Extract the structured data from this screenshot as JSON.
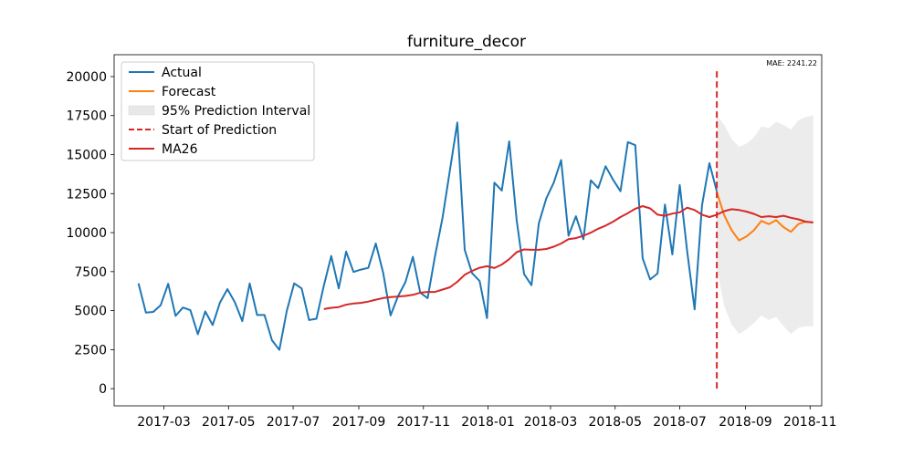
{
  "chart_data": {
    "type": "line",
    "title": "furniture_decor",
    "xlabel": "",
    "ylabel": "",
    "annotation": "MAE: 2241.22",
    "x_range": [
      "2017-01-13",
      "2018-11-12"
    ],
    "ylim": [
      -1100,
      21400
    ],
    "grid": false,
    "legend_position": "top-left",
    "x_ticks": [
      {
        "date": "2017-03-01",
        "label": "2017-03"
      },
      {
        "date": "2017-05-01",
        "label": "2017-05"
      },
      {
        "date": "2017-07-01",
        "label": "2017-07"
      },
      {
        "date": "2017-09-01",
        "label": "2017-09"
      },
      {
        "date": "2017-11-01",
        "label": "2017-11"
      },
      {
        "date": "2018-01-01",
        "label": "2018-01"
      },
      {
        "date": "2018-03-01",
        "label": "2018-03"
      },
      {
        "date": "2018-05-01",
        "label": "2018-05"
      },
      {
        "date": "2018-07-01",
        "label": "2018-07"
      },
      {
        "date": "2018-09-01",
        "label": "2018-09"
      },
      {
        "date": "2018-11-01",
        "label": "2018-11"
      }
    ],
    "y_ticks": [
      {
        "value": 0,
        "label": "0"
      },
      {
        "value": 2500,
        "label": "2500"
      },
      {
        "value": 5000,
        "label": "5000"
      },
      {
        "value": 7500,
        "label": "7500"
      },
      {
        "value": 10000,
        "label": "10000"
      },
      {
        "value": 12500,
        "label": "12500"
      },
      {
        "value": 15000,
        "label": "15000"
      },
      {
        "value": 17500,
        "label": "17500"
      },
      {
        "value": 20000,
        "label": "20000"
      }
    ],
    "legend": [
      {
        "label": "Actual",
        "kind": "line",
        "color": "#1f77b4"
      },
      {
        "label": "Forecast",
        "kind": "line",
        "color": "#ff7f0e"
      },
      {
        "label": "95% Prediction Interval",
        "kind": "patch",
        "color": "#e8e8e8"
      },
      {
        "label": "Start of Prediction",
        "kind": "dashed",
        "color": "#d62728"
      },
      {
        "label": "MA26",
        "kind": "line",
        "color": "#d62728"
      }
    ],
    "colors": {
      "actual": "#1f77b4",
      "forecast": "#ff7f0e",
      "interval": "#808080",
      "start": "#d62728",
      "ma": "#d62728"
    },
    "prediction_start": {
      "date": "2018-08-05",
      "ymin": 0,
      "ymax": 20500
    },
    "series": [
      {
        "name": "Actual",
        "x": [
          "2017-02-05",
          "2017-02-12",
          "2017-02-19",
          "2017-02-26",
          "2017-03-05",
          "2017-03-12",
          "2017-03-19",
          "2017-03-26",
          "2017-04-02",
          "2017-04-09",
          "2017-04-16",
          "2017-04-23",
          "2017-04-30",
          "2017-05-07",
          "2017-05-14",
          "2017-05-21",
          "2017-05-28",
          "2017-06-04",
          "2017-06-11",
          "2017-06-18",
          "2017-06-25",
          "2017-07-02",
          "2017-07-09",
          "2017-07-16",
          "2017-07-23",
          "2017-07-30",
          "2017-08-06",
          "2017-08-13",
          "2017-08-20",
          "2017-08-27",
          "2017-09-03",
          "2017-09-10",
          "2017-09-17",
          "2017-09-24",
          "2017-10-01",
          "2017-10-08",
          "2017-10-15",
          "2017-10-22",
          "2017-10-29",
          "2017-11-05",
          "2017-11-12",
          "2017-11-19",
          "2017-11-26",
          "2017-12-03",
          "2017-12-10",
          "2017-12-17",
          "2017-12-24",
          "2017-12-31",
          "2018-01-07",
          "2018-01-14",
          "2018-01-21",
          "2018-01-28",
          "2018-02-04",
          "2018-02-11",
          "2018-02-18",
          "2018-02-25",
          "2018-03-04",
          "2018-03-11",
          "2018-03-18",
          "2018-03-25",
          "2018-04-01",
          "2018-04-08",
          "2018-04-15",
          "2018-04-22",
          "2018-04-29",
          "2018-05-06",
          "2018-05-13",
          "2018-05-20",
          "2018-05-27",
          "2018-06-03",
          "2018-06-10",
          "2018-06-17",
          "2018-06-24",
          "2018-07-01",
          "2018-07-08",
          "2018-07-15",
          "2018-07-22",
          "2018-07-29",
          "2018-08-05"
        ],
        "values": [
          6750,
          4880,
          4920,
          5350,
          6720,
          4660,
          5200,
          5030,
          3490,
          4950,
          4080,
          5530,
          6380,
          5530,
          4330,
          6740,
          4720,
          4720,
          3100,
          2490,
          4980,
          6750,
          6420,
          4400,
          4480,
          6600,
          8500,
          6430,
          8780,
          7480,
          7630,
          7740,
          9300,
          7420,
          4690,
          5920,
          6820,
          8450,
          6150,
          5800,
          8510,
          10950,
          14000,
          17050,
          8900,
          7400,
          6900,
          4520,
          13200,
          12700,
          15850,
          10800,
          7350,
          6630,
          10600,
          12200,
          13200,
          14650,
          9800,
          11050,
          9580,
          13350,
          12850,
          14250,
          13400,
          12650,
          15800,
          15600,
          8350,
          7000,
          7380,
          11800,
          8600,
          13050,
          8780,
          5080,
          11750,
          14450,
          12650
        ]
      },
      {
        "name": "Forecast",
        "x": [
          "2018-08-05",
          "2018-08-12",
          "2018-08-19",
          "2018-08-26",
          "2018-09-02",
          "2018-09-09",
          "2018-09-16",
          "2018-09-23",
          "2018-09-30",
          "2018-10-07",
          "2018-10-14",
          "2018-10-21",
          "2018-10-28",
          "2018-11-04"
        ],
        "values": [
          12600,
          11100,
          10150,
          9500,
          9750,
          10150,
          10750,
          10550,
          10800,
          10350,
          10050,
          10550,
          10700,
          10650
        ]
      },
      {
        "name": "95% Prediction Interval",
        "x": [
          "2018-08-05",
          "2018-08-12",
          "2018-08-19",
          "2018-08-26",
          "2018-09-02",
          "2018-09-09",
          "2018-09-16",
          "2018-09-23",
          "2018-09-30",
          "2018-10-07",
          "2018-10-14",
          "2018-10-21",
          "2018-10-28",
          "2018-11-04"
        ],
        "lower": [
          7700,
          5300,
          4100,
          3500,
          3800,
          4200,
          4700,
          4400,
          4600,
          4000,
          3500,
          3900,
          4000,
          4000
        ],
        "upper": [
          17500,
          16900,
          16000,
          15500,
          15700,
          16100,
          16800,
          16700,
          17100,
          16900,
          16600,
          17200,
          17400,
          17500
        ]
      },
      {
        "name": "MA26",
        "x": [
          "2017-07-30",
          "2017-08-06",
          "2017-08-13",
          "2017-08-20",
          "2017-08-27",
          "2017-09-03",
          "2017-09-10",
          "2017-09-17",
          "2017-09-24",
          "2017-10-01",
          "2017-10-08",
          "2017-10-15",
          "2017-10-22",
          "2017-10-29",
          "2017-11-05",
          "2017-11-12",
          "2017-11-19",
          "2017-11-26",
          "2017-12-03",
          "2017-12-10",
          "2017-12-17",
          "2017-12-24",
          "2017-12-31",
          "2018-01-07",
          "2018-01-14",
          "2018-01-21",
          "2018-01-28",
          "2018-02-04",
          "2018-02-11",
          "2018-02-18",
          "2018-02-25",
          "2018-03-04",
          "2018-03-11",
          "2018-03-18",
          "2018-03-25",
          "2018-04-01",
          "2018-04-08",
          "2018-04-15",
          "2018-04-22",
          "2018-04-29",
          "2018-05-06",
          "2018-05-13",
          "2018-05-20",
          "2018-05-27",
          "2018-06-03",
          "2018-06-10",
          "2018-06-17",
          "2018-06-24",
          "2018-07-01",
          "2018-07-08",
          "2018-07-15",
          "2018-07-22",
          "2018-07-29",
          "2018-08-05",
          "2018-08-12",
          "2018-08-19",
          "2018-08-26",
          "2018-09-02",
          "2018-09-09",
          "2018-09-16",
          "2018-09-23",
          "2018-09-30",
          "2018-10-07",
          "2018-10-14",
          "2018-10-21",
          "2018-10-28",
          "2018-11-04"
        ],
        "values": [
          5100,
          5180,
          5230,
          5380,
          5460,
          5500,
          5580,
          5700,
          5810,
          5870,
          5910,
          5940,
          6010,
          6150,
          6200,
          6200,
          6350,
          6500,
          6850,
          7300,
          7550,
          7750,
          7850,
          7730,
          7950,
          8300,
          8750,
          8920,
          8900,
          8900,
          8950,
          9100,
          9300,
          9580,
          9650,
          9800,
          10000,
          10250,
          10450,
          10700,
          11000,
          11250,
          11530,
          11700,
          11550,
          11150,
          11080,
          11220,
          11300,
          11600,
          11450,
          11150,
          11000,
          11150,
          11380,
          11500,
          11450,
          11350,
          11200,
          11000,
          11050,
          11000,
          11080,
          10950,
          10850,
          10700,
          10650
        ]
      }
    ]
  }
}
